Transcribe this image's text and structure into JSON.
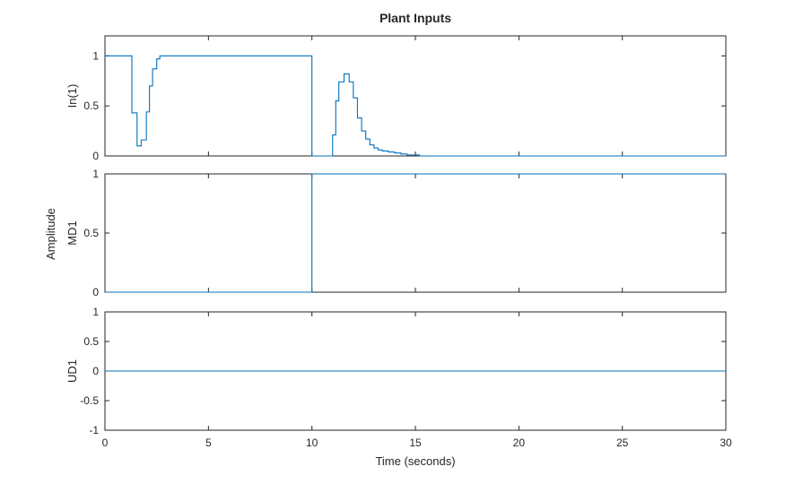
{
  "chart_data": {
    "type": "line",
    "title": "Plant Inputs",
    "xlabel": "Time (seconds)",
    "ylabel": "Amplitude",
    "xlim": [
      0,
      30
    ],
    "x_ticks": [
      0,
      5,
      10,
      15,
      20,
      25,
      30
    ],
    "x_tick_labels": [
      "0",
      "5",
      "10",
      "15",
      "20",
      "25",
      "30"
    ],
    "line_color": "#0072BD",
    "grid": false,
    "panels": [
      {
        "ylabel": "In(1)",
        "ylim": [
          0,
          1.2
        ],
        "y_ticks": [
          0,
          0.5,
          1
        ],
        "y_tick_labels": [
          "0",
          "0.5",
          "1"
        ],
        "series": [
          {
            "step": true,
            "x": [
              0,
              1.3,
              1.55,
              1.75,
              2.0,
              2.15,
              2.3,
              2.5,
              2.65,
              10.0,
              11.0,
              11.15,
              11.3,
              11.55,
              11.8,
              12.0,
              12.2,
              12.4,
              12.6,
              12.8,
              13.0,
              13.2,
              13.4,
              13.7,
              14.0,
              14.3,
              14.6,
              15.2,
              30
            ],
            "y": [
              1.0,
              0.43,
              0.1,
              0.16,
              0.44,
              0.7,
              0.87,
              0.97,
              1.0,
              0.0,
              0.21,
              0.55,
              0.74,
              0.82,
              0.74,
              0.58,
              0.38,
              0.25,
              0.17,
              0.11,
              0.08,
              0.06,
              0.05,
              0.04,
              0.03,
              0.02,
              0.01,
              0.0,
              0.0
            ]
          }
        ]
      },
      {
        "ylabel": "MD1",
        "ylim": [
          0,
          1
        ],
        "y_ticks": [
          0,
          0.5,
          1
        ],
        "y_tick_labels": [
          "0",
          "0.5",
          "1"
        ],
        "series": [
          {
            "step": true,
            "x": [
              0,
              10,
              30
            ],
            "y": [
              0,
              1,
              1
            ]
          }
        ]
      },
      {
        "ylabel": "UD1",
        "ylim": [
          -1,
          1
        ],
        "y_ticks": [
          -1,
          -0.5,
          0,
          0.5,
          1
        ],
        "y_tick_labels": [
          "-1",
          "-0.5",
          "0",
          "0.5",
          "1"
        ],
        "series": [
          {
            "step": false,
            "x": [
              0,
              30
            ],
            "y": [
              0,
              0
            ]
          }
        ]
      }
    ]
  }
}
